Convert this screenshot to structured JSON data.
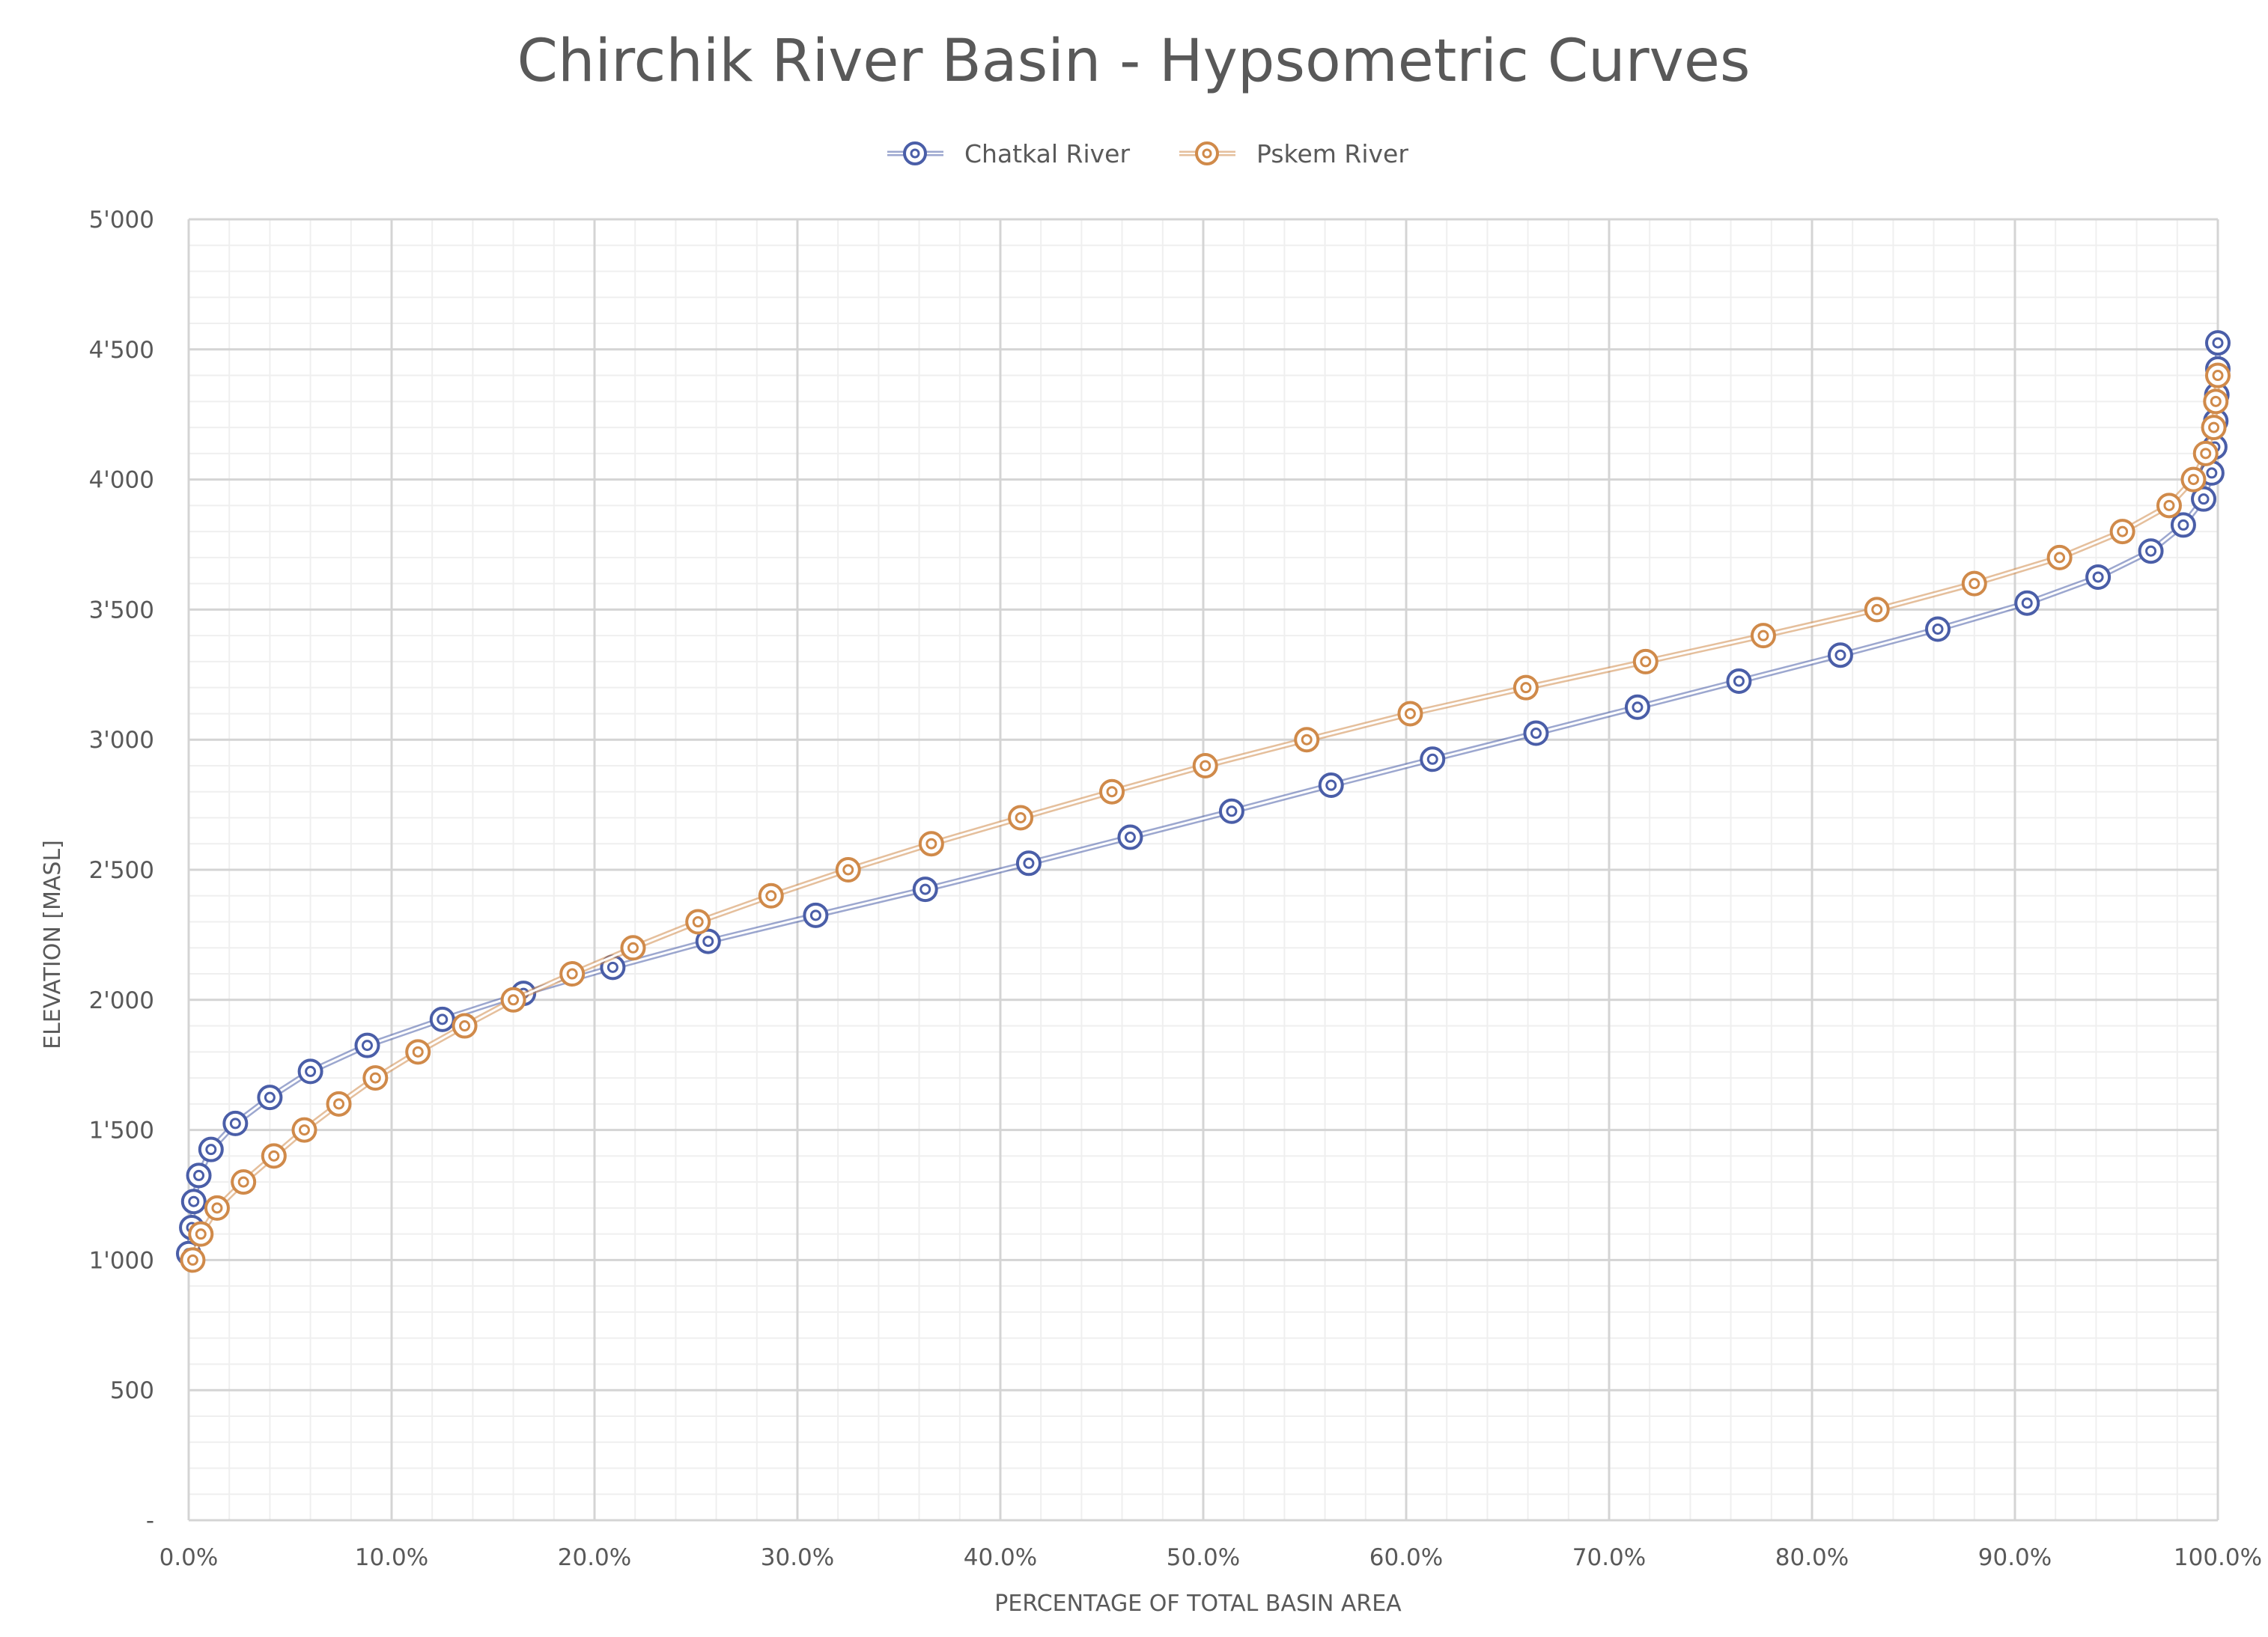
{
  "chart_data": {
    "type": "line",
    "title": "Chirchik River Basin - Hypsometric Curves",
    "xlabel": "PERCENTAGE OF TOTAL BASIN AREA",
    "ylabel": "ELEVATION [MASL]",
    "xlim": [
      0,
      100
    ],
    "ylim": [
      0,
      5000
    ],
    "x_ticks": [
      "0.0%",
      "10.0%",
      "20.0%",
      "30.0%",
      "40.0%",
      "50.0%",
      "60.0%",
      "70.0%",
      "80.0%",
      "90.0%",
      "100.0%"
    ],
    "y_ticks": [
      "-",
      "500",
      "1'000",
      "1'500",
      "2'000",
      "2'500",
      "3'000",
      "3'500",
      "4'000",
      "4'500",
      "5'000"
    ],
    "grid": true,
    "legend_position": "top-center",
    "series": [
      {
        "name": "Chatkal River",
        "color": "#4A5EA8",
        "marker": "double-circle",
        "points": [
          [
            0.0,
            1025
          ],
          [
            0.15,
            1125
          ],
          [
            0.25,
            1225
          ],
          [
            0.5,
            1325
          ],
          [
            1.1,
            1425
          ],
          [
            2.3,
            1525
          ],
          [
            4.0,
            1625
          ],
          [
            6.0,
            1725
          ],
          [
            8.8,
            1825
          ],
          [
            12.5,
            1925
          ],
          [
            16.5,
            2025
          ],
          [
            20.9,
            2125
          ],
          [
            25.6,
            2225
          ],
          [
            30.9,
            2325
          ],
          [
            36.3,
            2425
          ],
          [
            41.4,
            2525
          ],
          [
            46.4,
            2625
          ],
          [
            51.4,
            2725
          ],
          [
            56.3,
            2825
          ],
          [
            61.3,
            2925
          ],
          [
            66.4,
            3025
          ],
          [
            71.4,
            3125
          ],
          [
            76.4,
            3225
          ],
          [
            81.4,
            3325
          ],
          [
            86.2,
            3425
          ],
          [
            90.6,
            3525
          ],
          [
            94.1,
            3625
          ],
          [
            96.7,
            3725
          ],
          [
            98.3,
            3825
          ],
          [
            99.3,
            3925
          ],
          [
            99.7,
            4025
          ],
          [
            99.85,
            4125
          ],
          [
            99.9,
            4225
          ],
          [
            99.95,
            4325
          ],
          [
            100.0,
            4425
          ],
          [
            100.0,
            4525
          ]
        ]
      },
      {
        "name": "Pskem River",
        "color": "#D08A4A",
        "marker": "double-circle",
        "points": [
          [
            0.2,
            1000
          ],
          [
            0.6,
            1100
          ],
          [
            1.4,
            1200
          ],
          [
            2.7,
            1300
          ],
          [
            4.2,
            1400
          ],
          [
            5.7,
            1500
          ],
          [
            7.4,
            1600
          ],
          [
            9.2,
            1700
          ],
          [
            11.3,
            1800
          ],
          [
            13.6,
            1900
          ],
          [
            16.0,
            2000
          ],
          [
            18.9,
            2100
          ],
          [
            21.9,
            2200
          ],
          [
            25.1,
            2300
          ],
          [
            28.7,
            2400
          ],
          [
            32.5,
            2500
          ],
          [
            36.6,
            2600
          ],
          [
            41.0,
            2700
          ],
          [
            45.5,
            2800
          ],
          [
            50.1,
            2900
          ],
          [
            55.1,
            3000
          ],
          [
            60.2,
            3100
          ],
          [
            65.9,
            3200
          ],
          [
            71.8,
            3300
          ],
          [
            77.6,
            3400
          ],
          [
            83.2,
            3500
          ],
          [
            88.0,
            3600
          ],
          [
            92.2,
            3700
          ],
          [
            95.3,
            3800
          ],
          [
            97.6,
            3900
          ],
          [
            98.8,
            4000
          ],
          [
            99.4,
            4100
          ],
          [
            99.8,
            4200
          ],
          [
            99.9,
            4300
          ],
          [
            100.0,
            4400
          ]
        ]
      }
    ]
  }
}
